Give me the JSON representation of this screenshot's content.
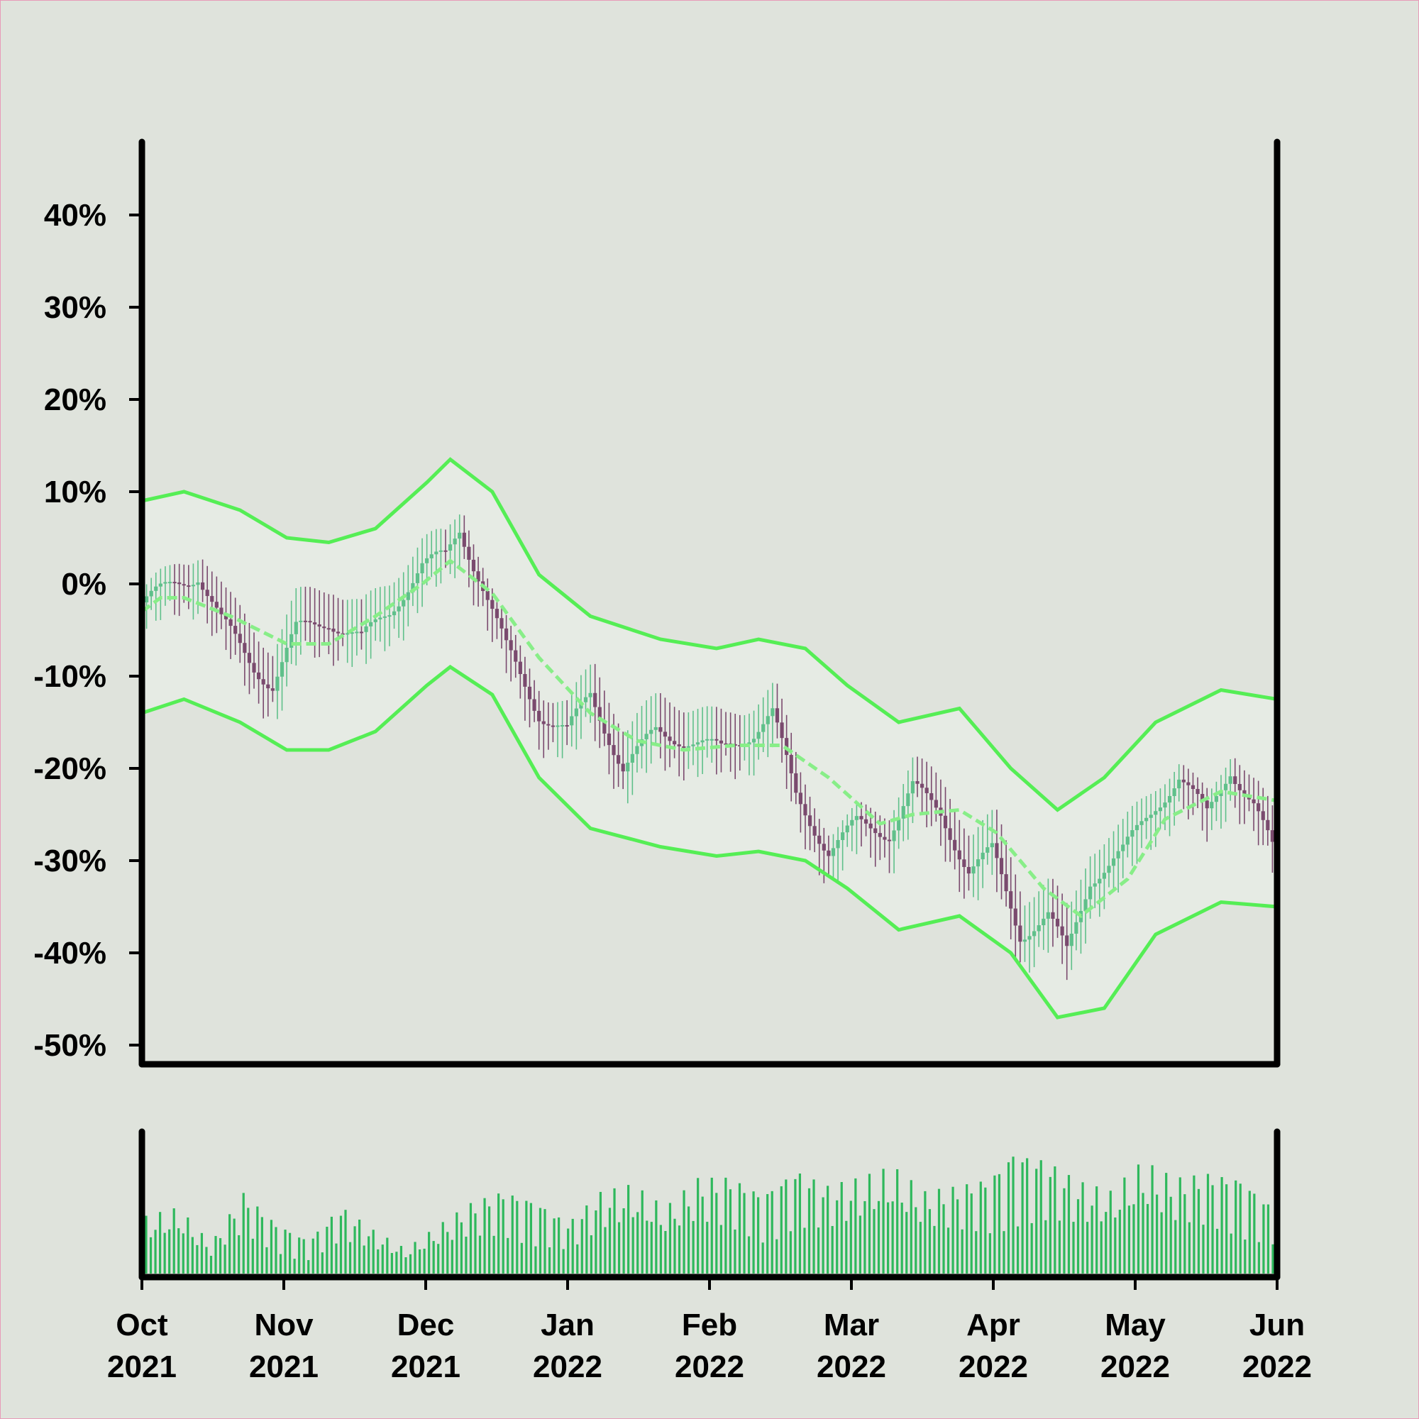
{
  "chart_data": [
    {
      "type": "candlestick",
      "title": "",
      "xlabel": "",
      "ylabel": "",
      "ylim": [
        -50,
        50
      ],
      "y_ticks": [
        "40%",
        "30%",
        "20%",
        "10%",
        "0%",
        "-10%",
        "-20%",
        "-30%",
        "-40%",
        "-50%"
      ],
      "x_ticks": [
        {
          "month": "Oct",
          "year": "2021"
        },
        {
          "month": "Nov",
          "year": "2021"
        },
        {
          "month": "Dec",
          "year": "2021"
        },
        {
          "month": "Jan",
          "year": "2022"
        },
        {
          "month": "Feb",
          "year": "2022"
        },
        {
          "month": "Mar",
          "year": "2022"
        },
        {
          "month": "Apr",
          "year": "2022"
        },
        {
          "month": "May",
          "year": "2022"
        },
        {
          "month": "Jun",
          "year": "2022"
        }
      ],
      "xlim": [
        "2021-10-01",
        "2022-06-01"
      ],
      "grid": false,
      "price_series": [
        [
          "2021-10-01",
          -2
        ],
        [
          "2021-10-08",
          0
        ],
        [
          "2021-10-13",
          1
        ],
        [
          "2021-10-18",
          -4
        ],
        [
          "2021-10-25",
          -9
        ],
        [
          "2021-10-29",
          -11
        ],
        [
          "2021-11-03",
          -5
        ],
        [
          "2021-11-10",
          -4
        ],
        [
          "2021-11-17",
          -6
        ],
        [
          "2021-11-23",
          -3
        ],
        [
          "2021-11-30",
          2
        ],
        [
          "2021-12-05",
          3
        ],
        [
          "2021-12-08",
          6
        ],
        [
          "2021-12-12",
          1
        ],
        [
          "2021-12-18",
          -7
        ],
        [
          "2021-12-25",
          -14
        ],
        [
          "2021-12-31",
          -16
        ],
        [
          "2022-01-05",
          -12
        ],
        [
          "2022-01-12",
          -20
        ],
        [
          "2022-01-19",
          -16
        ],
        [
          "2022-01-26",
          -17
        ],
        [
          "2022-02-02",
          -18
        ],
        [
          "2022-02-09",
          -16
        ],
        [
          "2022-02-13",
          -14
        ],
        [
          "2022-02-18",
          -23
        ],
        [
          "2022-02-25",
          -29
        ],
        [
          "2022-03-03",
          -26
        ],
        [
          "2022-03-10",
          -27
        ],
        [
          "2022-03-15",
          -22
        ],
        [
          "2022-03-21",
          -25
        ],
        [
          "2022-03-27",
          -31
        ],
        [
          "2022-04-01",
          -29
        ],
        [
          "2022-04-07",
          -38
        ],
        [
          "2022-04-13",
          -36
        ],
        [
          "2022-04-17",
          -40
        ],
        [
          "2022-04-22",
          -32
        ],
        [
          "2022-04-29",
          -29
        ],
        [
          "2022-05-06",
          -24
        ],
        [
          "2022-05-11",
          -21
        ],
        [
          "2022-05-17",
          -25
        ],
        [
          "2022-05-22",
          -20
        ],
        [
          "2022-05-27",
          -24
        ],
        [
          "2022-06-01",
          -30
        ]
      ],
      "moving_average": [
        [
          "2021-10-01",
          -3
        ],
        [
          "2021-10-05",
          -1.5
        ],
        [
          "2021-10-10",
          -1.5
        ],
        [
          "2021-10-20",
          -3.5
        ],
        [
          "2021-11-01",
          -6.5
        ],
        [
          "2021-11-10",
          -6.5
        ],
        [
          "2021-11-20",
          -3.5
        ],
        [
          "2021-11-30",
          0
        ],
        [
          "2021-12-06",
          2.5
        ],
        [
          "2021-12-15",
          -1
        ],
        [
          "2021-12-25",
          -8
        ],
        [
          "2022-01-05",
          -14
        ],
        [
          "2022-01-15",
          -17
        ],
        [
          "2022-01-25",
          -18
        ],
        [
          "2022-02-05",
          -17.5
        ],
        [
          "2022-02-15",
          -17.5
        ],
        [
          "2022-02-25",
          -21
        ],
        [
          "2022-03-08",
          -26
        ],
        [
          "2022-03-15",
          -25
        ],
        [
          "2022-03-25",
          -24.5
        ],
        [
          "2022-04-02",
          -27
        ],
        [
          "2022-04-12",
          -33
        ],
        [
          "2022-04-20",
          -36
        ],
        [
          "2022-04-30",
          -32
        ],
        [
          "2022-05-08",
          -25.5
        ],
        [
          "2022-05-20",
          -22.5
        ],
        [
          "2022-06-01",
          -23.5
        ]
      ],
      "upper_band": [
        [
          "2021-10-01",
          9
        ],
        [
          "2021-10-10",
          10
        ],
        [
          "2021-10-22",
          8
        ],
        [
          "2021-11-01",
          5
        ],
        [
          "2021-11-10",
          4.5
        ],
        [
          "2021-11-20",
          6
        ],
        [
          "2021-12-01",
          11
        ],
        [
          "2021-12-06",
          13.5
        ],
        [
          "2021-12-15",
          10
        ],
        [
          "2021-12-25",
          1
        ],
        [
          "2022-01-05",
          -3.5
        ],
        [
          "2022-01-20",
          -6
        ],
        [
          "2022-02-01",
          -7
        ],
        [
          "2022-02-10",
          -6
        ],
        [
          "2022-02-20",
          -7
        ],
        [
          "2022-03-01",
          -11
        ],
        [
          "2022-03-12",
          -15
        ],
        [
          "2022-03-25",
          -13.5
        ],
        [
          "2022-04-05",
          -20
        ],
        [
          "2022-04-15",
          -24.5
        ],
        [
          "2022-04-25",
          -21
        ],
        [
          "2022-05-06",
          -15
        ],
        [
          "2022-05-20",
          -11.5
        ],
        [
          "2022-06-01",
          -12.5
        ]
      ],
      "lower_band": [
        [
          "2021-10-01",
          -14
        ],
        [
          "2021-10-10",
          -12.5
        ],
        [
          "2021-10-22",
          -15
        ],
        [
          "2021-11-01",
          -18
        ],
        [
          "2021-11-10",
          -18
        ],
        [
          "2021-11-20",
          -16
        ],
        [
          "2021-12-01",
          -11
        ],
        [
          "2021-12-06",
          -9
        ],
        [
          "2021-12-15",
          -12
        ],
        [
          "2021-12-25",
          -21
        ],
        [
          "2022-01-05",
          -26.5
        ],
        [
          "2022-01-20",
          -28.5
        ],
        [
          "2022-02-01",
          -29.5
        ],
        [
          "2022-02-10",
          -29
        ],
        [
          "2022-02-20",
          -30
        ],
        [
          "2022-03-01",
          -33
        ],
        [
          "2022-03-12",
          -37.5
        ],
        [
          "2022-03-25",
          -36
        ],
        [
          "2022-04-05",
          -40
        ],
        [
          "2022-04-15",
          -47
        ],
        [
          "2022-04-25",
          -46
        ],
        [
          "2022-05-06",
          -38
        ],
        [
          "2022-05-20",
          -34.5
        ],
        [
          "2022-06-01",
          -35
        ]
      ],
      "colors": {
        "up": "#5fc08a",
        "down": "#7a4a6e",
        "band": "#55ee55",
        "moving_average": "#88ee88",
        "band_fill": "#e6ebe4",
        "volume": "#2eb85c",
        "background": "#dfe3dc"
      }
    },
    {
      "type": "bar",
      "title": "",
      "xlabel": "",
      "ylabel": "",
      "series_description": "daily volume",
      "volume": [
        [
          "2021-10-01",
          42
        ],
        [
          "2021-10-08",
          48
        ],
        [
          "2021-10-15",
          22
        ],
        [
          "2021-10-22",
          60
        ],
        [
          "2021-10-29",
          38
        ],
        [
          "2021-11-05",
          25
        ],
        [
          "2021-11-12",
          50
        ],
        [
          "2021-11-19",
          32
        ],
        [
          "2021-11-26",
          18
        ],
        [
          "2021-12-03",
          35
        ],
        [
          "2021-12-10",
          52
        ],
        [
          "2021-12-17",
          62
        ],
        [
          "2021-12-24",
          55
        ],
        [
          "2021-12-31",
          38
        ],
        [
          "2022-01-07",
          60
        ],
        [
          "2022-01-14",
          65
        ],
        [
          "2022-01-21",
          48
        ],
        [
          "2022-01-28",
          70
        ],
        [
          "2022-02-04",
          72
        ],
        [
          "2022-02-11",
          60
        ],
        [
          "2022-02-18",
          78
        ],
        [
          "2022-02-25",
          65
        ],
        [
          "2022-03-04",
          70
        ],
        [
          "2022-03-11",
          78
        ],
        [
          "2022-03-18",
          60
        ],
        [
          "2022-03-25",
          65
        ],
        [
          "2022-04-01",
          72
        ],
        [
          "2022-04-06",
          92
        ],
        [
          "2022-04-13",
          85
        ],
        [
          "2022-04-20",
          68
        ],
        [
          "2022-04-27",
          60
        ],
        [
          "2022-05-04",
          82
        ],
        [
          "2022-05-11",
          70
        ],
        [
          "2022-05-18",
          75
        ],
        [
          "2022-05-25",
          72
        ],
        [
          "2022-06-01",
          50
        ]
      ]
    }
  ]
}
